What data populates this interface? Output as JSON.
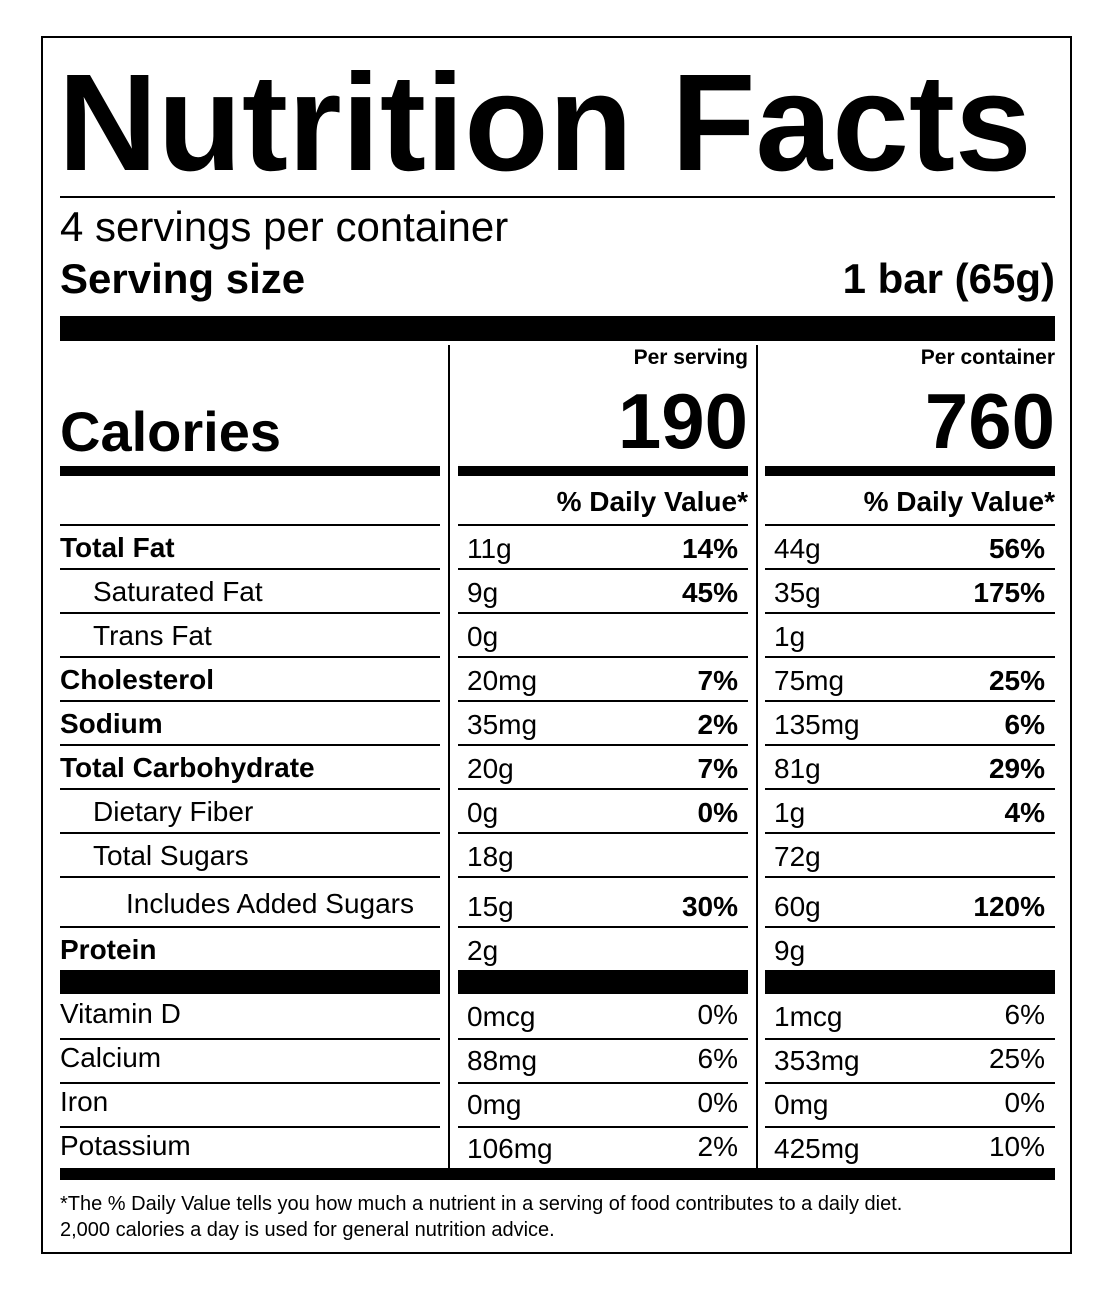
{
  "title": "Nutrition Facts",
  "servings": "4 servings per container",
  "serving_size": {
    "label": "Serving size",
    "value": "1 bar (65g)"
  },
  "calories_label": "Calories",
  "columns": [
    {
      "header": "Per serving",
      "calories": "190",
      "dv_header": "% Daily Value*"
    },
    {
      "header": "Per container",
      "calories": "760",
      "dv_header": "% Daily Value*"
    }
  ],
  "nutrients": [
    {
      "name": "Total Fat",
      "level": 0,
      "values": [
        {
          "amount": "11g",
          "dv": "14%"
        },
        {
          "amount": "44g",
          "dv": "56%"
        }
      ]
    },
    {
      "name": "Saturated Fat",
      "level": 1,
      "values": [
        {
          "amount": "9g",
          "dv": "45%"
        },
        {
          "amount": "35g",
          "dv": "175%"
        }
      ]
    },
    {
      "name": "Trans Fat",
      "level": 1,
      "values": [
        {
          "amount": "0g"
        },
        {
          "amount": "1g"
        }
      ]
    },
    {
      "name": "Cholesterol",
      "level": 0,
      "values": [
        {
          "amount": "20mg",
          "dv": "7%"
        },
        {
          "amount": "75mg",
          "dv": "25%"
        }
      ]
    },
    {
      "name": "Sodium",
      "level": 0,
      "values": [
        {
          "amount": "35mg",
          "dv": "2%"
        },
        {
          "amount": "135mg",
          "dv": "6%"
        }
      ]
    },
    {
      "name": "Total Carbohydrate",
      "level": 0,
      "values": [
        {
          "amount": "20g",
          "dv": "7%"
        },
        {
          "amount": "81g",
          "dv": "29%"
        }
      ]
    },
    {
      "name": "Dietary Fiber",
      "level": 1,
      "values": [
        {
          "amount": "0g",
          "dv": "0%"
        },
        {
          "amount": "1g",
          "dv": "4%"
        }
      ]
    },
    {
      "name": "Total Sugars",
      "level": 1,
      "values": [
        {
          "amount": "18g"
        },
        {
          "amount": "72g"
        }
      ]
    },
    {
      "name": "Includes Added Sugars",
      "level": 2,
      "values": [
        {
          "amount": "15g",
          "dv": "30%"
        },
        {
          "amount": "60g",
          "dv": "120%"
        }
      ]
    },
    {
      "name": "Protein",
      "level": 0,
      "values": [
        {
          "amount": "2g"
        },
        {
          "amount": "9g"
        }
      ]
    }
  ],
  "vitamins": [
    {
      "name": "Vitamin D",
      "values": [
        {
          "amount": "0mcg",
          "dv": "0%"
        },
        {
          "amount": "1mcg",
          "dv": "6%"
        }
      ]
    },
    {
      "name": "Calcium",
      "values": [
        {
          "amount": "88mg",
          "dv": "6%"
        },
        {
          "amount": "353mg",
          "dv": "25%"
        }
      ]
    },
    {
      "name": "Iron",
      "values": [
        {
          "amount": "0mg",
          "dv": "0%"
        },
        {
          "amount": "0mg",
          "dv": "0%"
        }
      ]
    },
    {
      "name": "Potassium",
      "values": [
        {
          "amount": "106mg",
          "dv": "2%"
        },
        {
          "amount": "425mg",
          "dv": "10%"
        }
      ]
    }
  ],
  "footnote": [
    "*The % Daily Value tells you how much a nutrient in a serving of food contributes to a daily diet.",
    "2,000 calories a day is used for general nutrition advice."
  ]
}
